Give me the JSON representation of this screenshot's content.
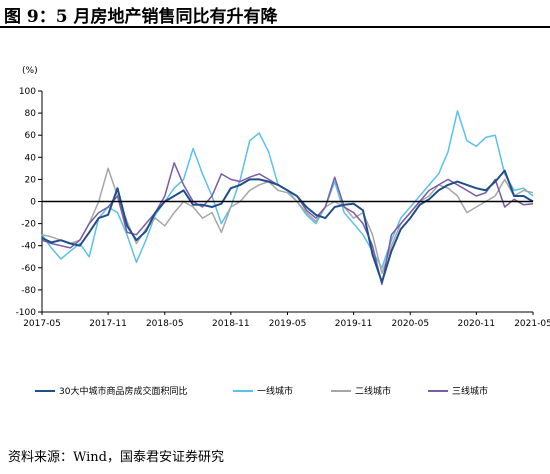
{
  "header": {
    "title": "图 9：5 月房地产销售同比有升有降"
  },
  "footer": {
    "source": "资料来源：Wind，国泰君安证券研究"
  },
  "colors": {
    "s1": "#1f4e8c",
    "s2": "#5bc0eb",
    "s3": "#a6a6a6",
    "s4": "#7b5aa6",
    "axis": "#000000"
  },
  "chart_data": {
    "type": "line",
    "ylabel": "(%)",
    "ylim": [
      -100,
      100
    ],
    "yticks": [
      100,
      80,
      60,
      40,
      20,
      0,
      -20,
      -40,
      -60,
      -80,
      -100
    ],
    "x_start": "2017-05",
    "x_end": "2021-05",
    "xtick_labels": [
      "2017-05",
      "2017-11",
      "2018-05",
      "2018-11",
      "2019-05",
      "2019-11",
      "2020-05",
      "2020-11",
      "2021-05"
    ],
    "legend_position": "bottom",
    "series": [
      {
        "name": "30大中城市商品房成交面积同比",
        "values": [
          -33,
          -37,
          -35,
          -38,
          -40,
          -28,
          -15,
          -12,
          12,
          -22,
          -35,
          -27,
          -10,
          0,
          5,
          10,
          -3,
          -3,
          -5,
          -2,
          12,
          15,
          20,
          20,
          18,
          15,
          10,
          5,
          -5,
          -12,
          -15,
          -5,
          -3,
          -2,
          -8,
          -48,
          -73,
          -45,
          -25,
          -15,
          -3,
          2,
          10,
          15,
          18,
          15,
          12,
          10,
          18,
          28,
          5,
          5,
          0
        ]
      },
      {
        "name": "一线城市",
        "values": [
          -30,
          -42,
          -52,
          -45,
          -38,
          -50,
          -15,
          -5,
          -10,
          -30,
          -55,
          -35,
          -12,
          0,
          12,
          20,
          48,
          25,
          5,
          -20,
          -5,
          20,
          55,
          62,
          45,
          15,
          10,
          0,
          -12,
          -20,
          -5,
          18,
          -10,
          -20,
          -30,
          -45,
          -60,
          -35,
          -15,
          -5,
          5,
          15,
          25,
          45,
          82,
          55,
          50,
          58,
          60,
          25,
          10,
          12,
          5
        ]
      },
      {
        "name": "二线城市",
        "values": [
          -30,
          -32,
          -35,
          -38,
          -35,
          -20,
          0,
          30,
          5,
          -18,
          -38,
          -25,
          -15,
          -22,
          -10,
          0,
          -5,
          -15,
          -10,
          -28,
          -5,
          0,
          10,
          15,
          18,
          10,
          8,
          0,
          -10,
          -18,
          -5,
          0,
          -5,
          -15,
          -10,
          -30,
          -65,
          -40,
          -20,
          -10,
          0,
          5,
          15,
          12,
          5,
          -10,
          -5,
          0,
          5,
          20,
          5,
          10,
          8
        ]
      },
      {
        "name": "三线城市",
        "values": [
          -35,
          -38,
          -40,
          -42,
          -35,
          -20,
          -10,
          -5,
          5,
          -28,
          -30,
          -20,
          -10,
          5,
          35,
          15,
          0,
          -5,
          5,
          25,
          20,
          18,
          22,
          25,
          20,
          15,
          10,
          5,
          -8,
          -15,
          -5,
          22,
          -5,
          -10,
          -20,
          -40,
          -75,
          -30,
          -20,
          -10,
          0,
          10,
          15,
          20,
          15,
          10,
          5,
          8,
          20,
          -5,
          2,
          -3,
          -2
        ]
      }
    ]
  }
}
